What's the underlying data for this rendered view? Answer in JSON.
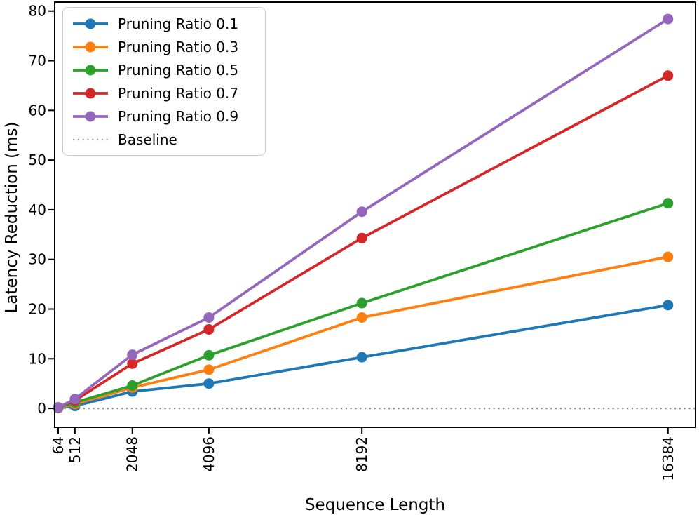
{
  "chart_data": {
    "type": "line",
    "title": "",
    "xlabel": "Sequence Length",
    "ylabel": "Latency Reduction (ms)",
    "x": [
      64,
      512,
      2048,
      4096,
      8192,
      16384
    ],
    "x_tick_labels": [
      "64",
      "512",
      "2048",
      "4096",
      "8192",
      "16384"
    ],
    "y_ticks": [
      0,
      10,
      20,
      30,
      40,
      50,
      60,
      70,
      80
    ],
    "xlim": [
      -30,
      17120
    ],
    "ylim": [
      -3.8,
      81.8
    ],
    "grid": false,
    "legend_position": "upper left",
    "x_tick_rotation": 90,
    "series": [
      {
        "name": "Pruning Ratio 0.1",
        "color": "#1f77b4",
        "values": [
          0.1,
          0.5,
          3.4,
          5.0,
          10.3,
          20.8
        ]
      },
      {
        "name": "Pruning Ratio 0.3",
        "color": "#ff7f0e",
        "values": [
          0.1,
          0.9,
          4.2,
          7.8,
          18.3,
          30.5
        ]
      },
      {
        "name": "Pruning Ratio 0.5",
        "color": "#2ca02c",
        "values": [
          0.15,
          1.2,
          4.6,
          10.7,
          21.2,
          41.3
        ]
      },
      {
        "name": "Pruning Ratio 0.7",
        "color": "#d62728",
        "values": [
          0.2,
          1.6,
          9.0,
          15.9,
          34.3,
          67.0
        ]
      },
      {
        "name": "Pruning Ratio 0.9",
        "color": "#9467bd",
        "values": [
          0.2,
          1.9,
          10.8,
          18.3,
          39.6,
          78.4
        ]
      }
    ],
    "baseline": {
      "label": "Baseline",
      "value": 0,
      "color": "#909090",
      "style": "dotted"
    },
    "axis_color": "#000000",
    "line_width": 3.8,
    "marker_radius": 7.5
  }
}
